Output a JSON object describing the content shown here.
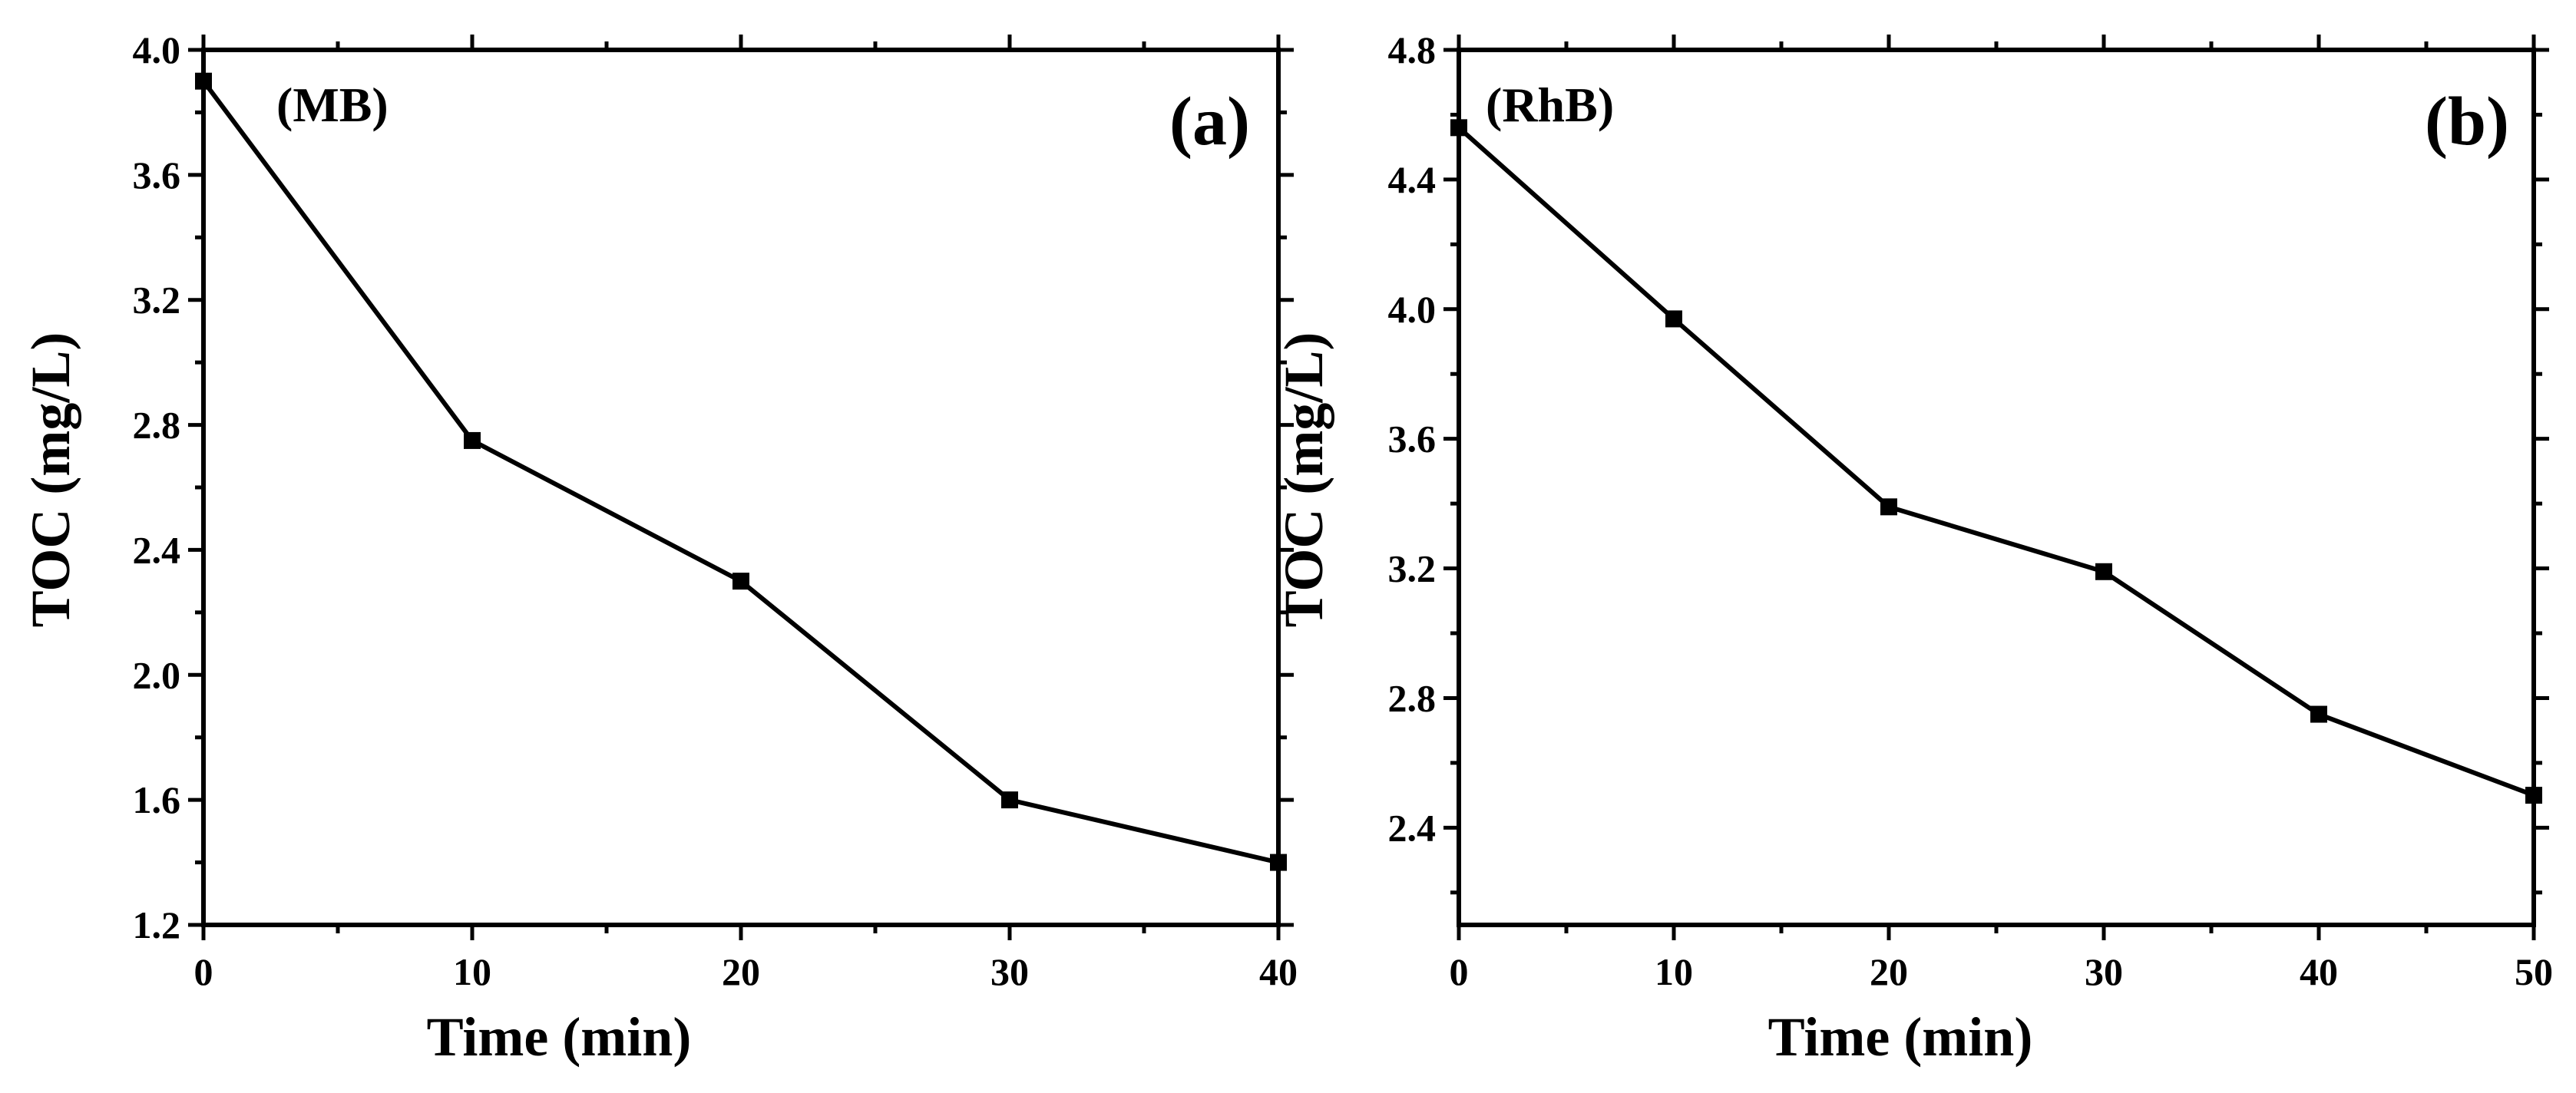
{
  "chart_data": [
    {
      "type": "line",
      "annotation": "(MB)",
      "panel_label": "(a)",
      "xlabel": "Time (min)",
      "ylabel": "TOC (mg/L)",
      "xlim": [
        0,
        40
      ],
      "ylim": [
        1.2,
        4.0
      ],
      "xticks": [
        0,
        10,
        20,
        30,
        40
      ],
      "xtick_labels": [
        "0",
        "10",
        "20",
        "30",
        "40"
      ],
      "yticks": [
        1.2,
        1.6,
        2.0,
        2.4,
        2.8,
        3.2,
        3.6,
        4.0
      ],
      "ytick_labels": [
        "1.2",
        "1.6",
        "2.0",
        "2.4",
        "2.8",
        "3.2",
        "3.6",
        "4.0"
      ],
      "grid": false,
      "marker": "square",
      "series": [
        {
          "x": [
            0,
            10,
            20,
            30,
            40
          ],
          "values": [
            3.9,
            2.75,
            2.3,
            1.6,
            1.4
          ]
        }
      ]
    },
    {
      "type": "line",
      "annotation": "(RhB)",
      "panel_label": "(b)",
      "xlabel": "Time (min)",
      "ylabel": "TOC (mg/L)",
      "xlim": [
        0,
        50
      ],
      "ylim": [
        2.1,
        4.8
      ],
      "xticks": [
        0,
        10,
        20,
        30,
        40,
        50
      ],
      "xtick_labels": [
        "0",
        "10",
        "20",
        "30",
        "40",
        "50"
      ],
      "yticks": [
        2.4,
        2.8,
        3.2,
        3.6,
        4.0,
        4.4,
        4.8
      ],
      "ytick_labels": [
        "2.4",
        "2.8",
        "3.2",
        "3.6",
        "4.0",
        "4.4",
        "4.8"
      ],
      "grid": false,
      "marker": "square",
      "series": [
        {
          "x": [
            0,
            10,
            20,
            30,
            40,
            50
          ],
          "values": [
            4.56,
            3.97,
            3.39,
            3.19,
            2.75,
            2.5
          ]
        }
      ]
    }
  ],
  "colors": {
    "line": "#000000",
    "axis": "#000000",
    "background": "#ffffff"
  }
}
